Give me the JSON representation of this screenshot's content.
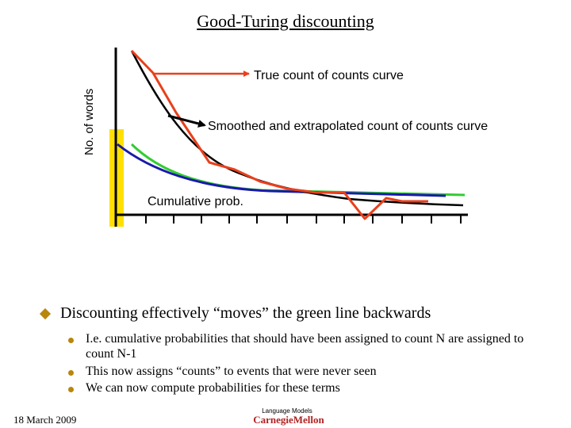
{
  "slide": {
    "title": "Good-Turing discounting",
    "y_axis_label": "No. of words",
    "annotations": {
      "true_curve": "True count of counts curve",
      "smoothed_curve": "Smoothed and extrapolated count of counts curve",
      "cumulative": "Cumulative prob."
    },
    "bullet": "Discounting effectively “moves” the green line backwards",
    "sub_bullets": [
      "I.e. cumulative probabilities that should have been assigned to count N are assigned to count N-1",
      "This now assigns “counts” to events that were never seen",
      "We can now compute probabilities for these terms"
    ],
    "footer": {
      "date": "18 March 2009",
      "course": "Language Models",
      "logo": "CarnegieMellon"
    }
  },
  "colors": {
    "true_curve": "#e8401c",
    "smoothed_curve": "#000000",
    "cumulative_green": "#33cc33",
    "cumulative_blue": "#1a1aaa",
    "highlight_bar": "#ffe000",
    "bullet": "#b8860b",
    "logo": "#b22222"
  }
}
